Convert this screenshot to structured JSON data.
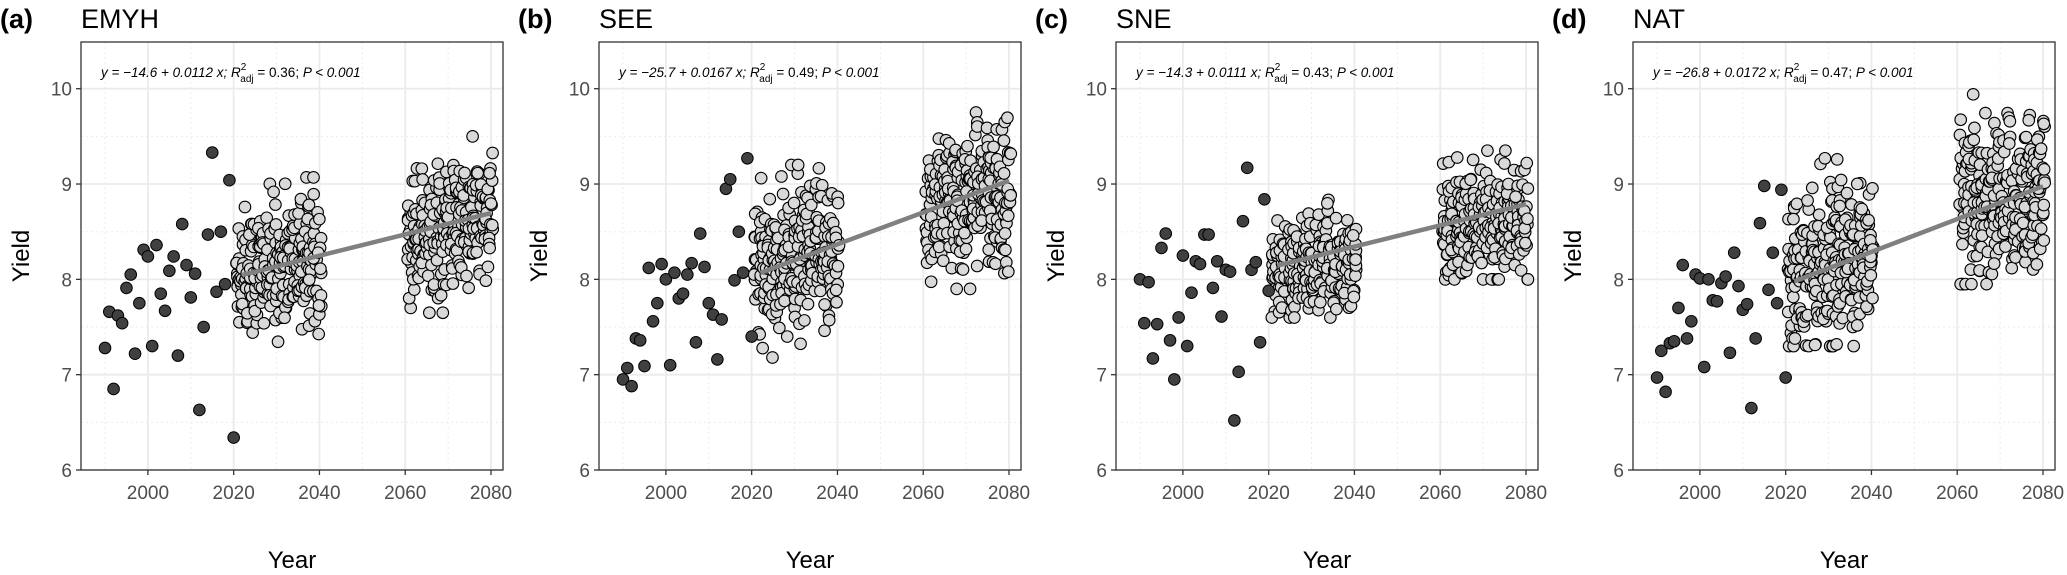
{
  "chart_data": [
    {
      "type": "scatter",
      "panel_label": "(a)",
      "title": "EMYH",
      "xlabel": "Year",
      "ylabel": "Yield",
      "xlim": [
        1984.4,
        2082.8
      ],
      "ylim": [
        6,
        10.49
      ],
      "xticks": [
        "2000",
        "2020",
        "2040",
        "2060",
        "2080"
      ],
      "yticks": [
        "6",
        "7",
        "8",
        "9",
        "10"
      ],
      "equation": {
        "lhs": "y = −14.6 + 0.0112 x; ",
        "r": "R",
        "sup": "2",
        "sub": "adj",
        "r2": " = 0.36; ",
        "p": "P < 0.001"
      },
      "regression": {
        "intercept": -14.6,
        "slope": 0.0112,
        "x_range": [
          2022,
          2080
        ]
      },
      "observed": {
        "x_start": 1990,
        "y": [
          7.28,
          7.66,
          6.85,
          7.62,
          7.54,
          7.91,
          8.05,
          7.22,
          7.75,
          8.31,
          8.24,
          7.3,
          8.36,
          7.85,
          7.67,
          8.09,
          8.24,
          7.2,
          8.58,
          8.15,
          7.81,
          8.06,
          6.63,
          7.5,
          8.47,
          9.33,
          7.87,
          8.5,
          7.95,
          9.04,
          6.34
        ]
      },
      "projected": [
        {
          "years": [
            2021,
            2040
          ],
          "n_per_year": 14,
          "mean": 8.15,
          "sd": 0.33,
          "ymin": 7.3,
          "ymax": 9.07
        },
        {
          "years": [
            2061,
            2080
          ],
          "n_per_year": 14,
          "mean": 8.55,
          "sd": 0.33,
          "ymin": 7.65,
          "ymax": 9.5
        }
      ]
    },
    {
      "type": "scatter",
      "panel_label": "(b)",
      "title": "SEE",
      "xlabel": "Year",
      "ylabel": "Yield",
      "xlim": [
        1984.4,
        2082.8
      ],
      "ylim": [
        6,
        10.49
      ],
      "xticks": [
        "2000",
        "2020",
        "2040",
        "2060",
        "2080"
      ],
      "yticks": [
        "6",
        "7",
        "8",
        "9",
        "10"
      ],
      "equation": {
        "lhs": "y = −25.7 + 0.0167 x; ",
        "r": "R",
        "sup": "2",
        "sub": "adj",
        "r2": " = 0.49; ",
        "p": "P < 0.001"
      },
      "regression": {
        "intercept": -25.7,
        "slope": 0.0167,
        "x_range": [
          2022,
          2080
        ]
      },
      "observed": {
        "x_start": 1990,
        "y": [
          6.95,
          7.07,
          6.88,
          7.38,
          7.36,
          7.09,
          8.12,
          7.56,
          7.75,
          8.16,
          8.0,
          7.1,
          8.07,
          7.8,
          7.85,
          8.05,
          8.17,
          7.34,
          8.48,
          8.13,
          7.75,
          7.63,
          7.16,
          7.58,
          8.95,
          9.05,
          7.99,
          8.5,
          8.07,
          9.27,
          7.4
        ]
      },
      "projected": [
        {
          "years": [
            2021,
            2040
          ],
          "n_per_year": 14,
          "mean": 8.2,
          "sd": 0.38,
          "ymin": 7.18,
          "ymax": 9.2
        },
        {
          "years": [
            2061,
            2080
          ],
          "n_per_year": 14,
          "mean": 8.85,
          "sd": 0.38,
          "ymin": 7.9,
          "ymax": 9.82
        }
      ]
    },
    {
      "type": "scatter",
      "panel_label": "(c)",
      "title": "SNE",
      "xlabel": "Year",
      "ylabel": "Yield",
      "xlim": [
        1984.4,
        2082.8
      ],
      "ylim": [
        6,
        10.49
      ],
      "xticks": [
        "2000",
        "2020",
        "2040",
        "2060",
        "2080"
      ],
      "yticks": [
        "6",
        "7",
        "8",
        "9",
        "10"
      ],
      "equation": {
        "lhs": "y = −14.3 + 0.0111 x; ",
        "r": "R",
        "sup": "2",
        "sub": "adj",
        "r2": " = 0.43; ",
        "p": "P < 0.001"
      },
      "regression": {
        "intercept": -14.3,
        "slope": 0.0111,
        "x_range": [
          2022,
          2080
        ]
      },
      "observed": {
        "x_start": 1990,
        "y": [
          8.0,
          7.54,
          7.97,
          7.17,
          7.53,
          8.33,
          8.48,
          7.36,
          6.95,
          7.6,
          8.25,
          7.3,
          7.86,
          8.19,
          8.16,
          8.47,
          8.47,
          7.91,
          8.19,
          7.61,
          8.1,
          8.08,
          6.52,
          7.03,
          8.61,
          9.17,
          8.1,
          8.18,
          7.34,
          8.84,
          7.88
        ]
      },
      "projected": [
        {
          "years": [
            2021,
            2040
          ],
          "n_per_year": 14,
          "mean": 8.15,
          "sd": 0.25,
          "ymin": 7.6,
          "ymax": 8.92
        },
        {
          "years": [
            2061,
            2080
          ],
          "n_per_year": 14,
          "mean": 8.6,
          "sd": 0.28,
          "ymin": 8.0,
          "ymax": 9.35
        }
      ]
    },
    {
      "type": "scatter",
      "panel_label": "(d)",
      "title": "NAT",
      "xlabel": "Year",
      "ylabel": "Yield",
      "xlim": [
        1984.4,
        2082.8
      ],
      "ylim": [
        6,
        10.49
      ],
      "xticks": [
        "2000",
        "2020",
        "2040",
        "2060",
        "2080"
      ],
      "yticks": [
        "6",
        "7",
        "8",
        "9",
        "10"
      ],
      "equation": {
        "lhs": "y = −26.8 + 0.0172 x; ",
        "r": "R",
        "sup": "2",
        "sub": "adj",
        "r2": " = 0.47; ",
        "p": "P < 0.001"
      },
      "regression": {
        "intercept": -26.8,
        "slope": 0.0172,
        "x_range": [
          2022,
          2080
        ]
      },
      "observed": {
        "x_start": 1990,
        "y": [
          6.97,
          7.25,
          6.82,
          7.33,
          7.35,
          7.7,
          8.15,
          7.38,
          7.56,
          8.05,
          8.01,
          7.08,
          8.0,
          7.78,
          7.77,
          7.96,
          8.03,
          7.23,
          8.28,
          7.93,
          7.68,
          7.74,
          6.65,
          7.38,
          8.59,
          8.98,
          7.89,
          8.28,
          7.75,
          8.94,
          6.97
        ]
      },
      "projected": [
        {
          "years": [
            2021,
            2040
          ],
          "n_per_year": 14,
          "mean": 8.2,
          "sd": 0.4,
          "ymin": 7.3,
          "ymax": 9.27
        },
        {
          "years": [
            2061,
            2080
          ],
          "n_per_year": 14,
          "mean": 8.85,
          "sd": 0.4,
          "ymin": 7.95,
          "ymax": 10.0
        }
      ]
    }
  ],
  "colors": {
    "observed": "#404040",
    "projected": "#d9d9d9",
    "regression": "#808080",
    "grid": "#ebebeb",
    "frame": "#333333"
  }
}
